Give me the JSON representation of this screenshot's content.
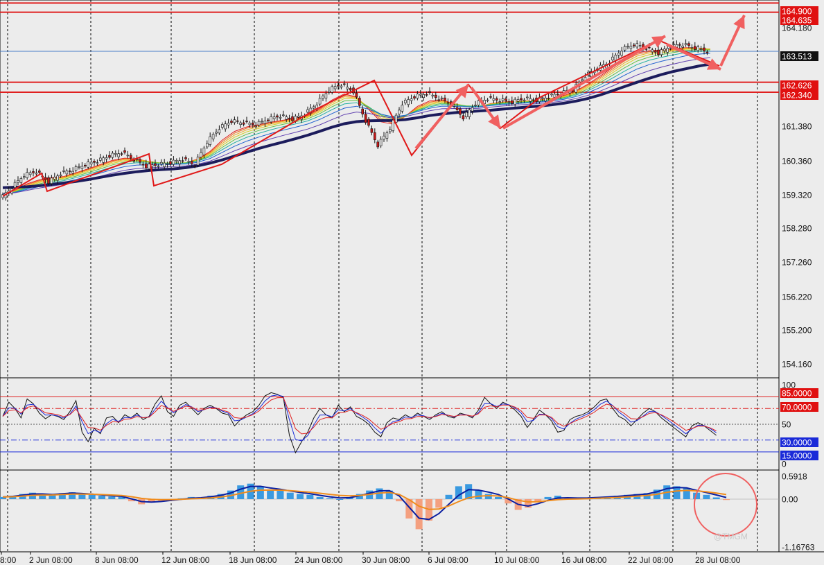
{
  "chart_data": {
    "type": "line",
    "instrument_note": "",
    "x_axis": {
      "ticks": [
        "8:00",
        "2 Jun 08:00",
        "8 Jun 08:00",
        "12 Jun 08:00",
        "18 Jun 08:00",
        "24 Jun 08:00",
        "30 Jun 08:00",
        "6 Jul 08:00",
        "10 Jul 08:00",
        "16 Jul 08:00",
        "22 Jul 08:00",
        "28 Jul 08:00"
      ]
    },
    "price_panel": {
      "y_ticks": [
        164.18,
        163.513,
        161.38,
        160.36,
        159.32,
        158.28,
        157.26,
        156.22,
        155.2,
        154.16
      ],
      "ylim": [
        153.5,
        165.0
      ],
      "current_price": 163.513,
      "horizontal_levels": [
        {
          "label": "164.900",
          "value": 164.9
        },
        {
          "label": "164.635",
          "value": 164.635
        },
        {
          "label": "162.626",
          "value": 162.626
        },
        {
          "label": "162.340",
          "value": 162.34
        }
      ],
      "tick_labels": [
        "164.180",
        "161.380",
        "160.360",
        "159.320",
        "158.280",
        "157.260",
        "156.220",
        "155.200",
        "154.160"
      ],
      "current_label": "163.513",
      "close_series": [
        [
          0,
          159.25
        ],
        [
          2,
          159.6
        ],
        [
          4,
          159.95
        ],
        [
          6,
          160.05
        ],
        [
          8,
          159.75
        ],
        [
          10,
          160.0
        ],
        [
          12,
          160.1
        ],
        [
          14,
          160.25
        ],
        [
          16,
          160.35
        ],
        [
          18,
          160.5
        ],
        [
          20,
          160.6
        ],
        [
          22,
          160.4
        ],
        [
          24,
          160.2
        ],
        [
          26,
          160.25
        ],
        [
          28,
          160.3
        ],
        [
          30,
          160.4
        ],
        [
          32,
          160.25
        ],
        [
          34,
          160.9
        ],
        [
          36,
          161.3
        ],
        [
          38,
          161.5
        ],
        [
          40,
          161.45
        ],
        [
          42,
          161.4
        ],
        [
          44,
          161.55
        ],
        [
          46,
          161.65
        ],
        [
          48,
          161.55
        ],
        [
          50,
          161.7
        ],
        [
          52,
          162.0
        ],
        [
          54,
          162.4
        ],
        [
          56,
          162.55
        ],
        [
          58,
          162.35
        ],
        [
          60,
          161.5
        ],
        [
          62,
          160.8
        ],
        [
          64,
          161.3
        ],
        [
          66,
          162.0
        ],
        [
          68,
          162.2
        ],
        [
          70,
          162.3
        ],
        [
          72,
          162.15
        ],
        [
          74,
          162.0
        ],
        [
          76,
          161.6
        ],
        [
          78,
          162.0
        ],
        [
          80,
          162.15
        ],
        [
          82,
          162.1
        ],
        [
          84,
          162.05
        ],
        [
          86,
          162.15
        ],
        [
          88,
          162.1
        ],
        [
          90,
          162.2
        ],
        [
          92,
          162.3
        ],
        [
          94,
          162.4
        ],
        [
          96,
          162.8
        ],
        [
          98,
          163.0
        ],
        [
          100,
          163.2
        ],
        [
          102,
          163.55
        ],
        [
          104,
          163.7
        ],
        [
          106,
          163.6
        ],
        [
          108,
          163.45
        ],
        [
          110,
          163.65
        ],
        [
          112,
          163.7
        ],
        [
          114,
          163.6
        ],
        [
          116,
          163.5
        ]
      ],
      "trend_annotations": [
        "up",
        "down",
        "up",
        "down",
        "up",
        "up"
      ]
    },
    "oscillator_panel": {
      "y_labels": [
        "100",
        "50",
        "0"
      ],
      "levels": [
        {
          "label": "85.0000",
          "value": 85
        },
        {
          "label": "70.0000",
          "value": 70
        },
        {
          "label": "30.0000",
          "value": 30
        },
        {
          "label": "15.0000",
          "value": 15
        }
      ]
    },
    "macd_panel": {
      "y_labels": [
        "0.5918",
        "0.00",
        "-1.16763"
      ],
      "ylim": [
        -1.16763,
        0.5918
      ]
    },
    "watermark": "@TMGM",
    "colors": {
      "background": "#ececec",
      "grid": "#000000",
      "level_red": "#e02020",
      "current_line": "#4a7ec8",
      "arrow": "#f06060",
      "ema_slow": "#1c1c5c",
      "hist_pos": "#3a9ae0",
      "hist_neg": "#f4a080",
      "macd_line": "#0a1ea0",
      "signal_line": "#f08c1c",
      "label_bg_red": "#e01010",
      "label_bg_blue": "#1a2ad8",
      "label_bg_black": "#101010"
    }
  }
}
